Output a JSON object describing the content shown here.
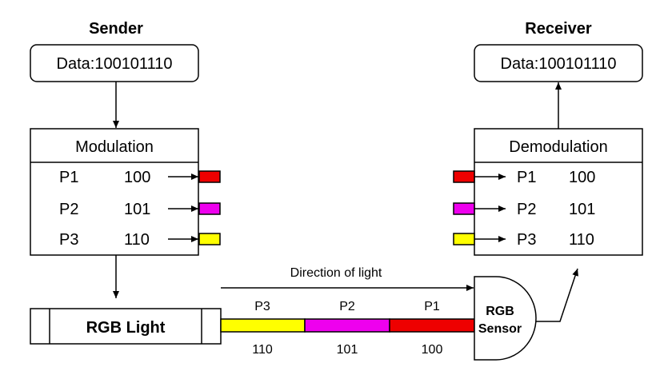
{
  "sender": {
    "title": "Sender",
    "data_label": "Data:100101110",
    "modulation_label": "Modulation",
    "rows": [
      {
        "packet": "P1",
        "bits": "100",
        "color": "#ee0000"
      },
      {
        "packet": "P2",
        "bits": "101",
        "color": "#ee00ee"
      },
      {
        "packet": "P3",
        "bits": "110",
        "color": "#ffff00"
      }
    ],
    "light_label": "RGB Light"
  },
  "receiver": {
    "title": "Receiver",
    "data_label": "Data:100101110",
    "demodulation_label": "Demodulation",
    "rows": [
      {
        "packet": "P1",
        "bits": "100",
        "color": "#ee0000"
      },
      {
        "packet": "P2",
        "bits": "101",
        "color": "#ee00ee"
      },
      {
        "packet": "P3",
        "bits": "110",
        "color": "#ffff00"
      }
    ],
    "sensor_label_line1": "RGB",
    "sensor_label_line2": "Sensor"
  },
  "channel": {
    "direction_label": "Direction of light",
    "segments": [
      {
        "packet": "P3",
        "bits": "110",
        "color": "#ffff00"
      },
      {
        "packet": "P2",
        "bits": "101",
        "color": "#ee00ee"
      },
      {
        "packet": "P1",
        "bits": "100",
        "color": "#ee0000"
      }
    ]
  }
}
